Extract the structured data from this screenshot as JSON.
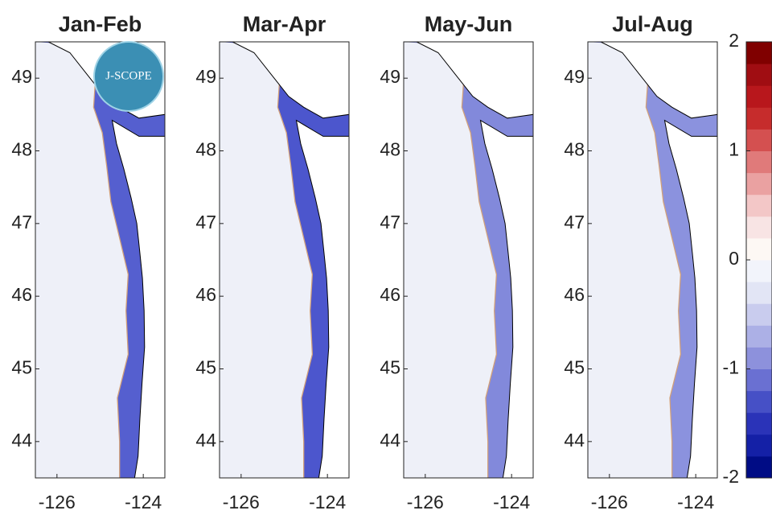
{
  "logo_text": "J-SCOPE",
  "map": {
    "xlim": [
      -126.5,
      -123.5
    ],
    "ylim": [
      43.5,
      49.5
    ],
    "xticks": [
      -126,
      -124
    ],
    "yticks": [
      44,
      45,
      46,
      47,
      48,
      49
    ],
    "panels": [
      {
        "title": "Jan-Feb"
      },
      {
        "title": "Mar-Apr"
      },
      {
        "title": "May-Jun"
      },
      {
        "title": "Jul-Aug"
      }
    ]
  },
  "colorbar": {
    "clim": [
      -2,
      2
    ],
    "ticks": [
      -2,
      -1,
      0,
      1,
      2
    ],
    "colors": [
      "#000c85",
      "#1420a6",
      "#2a33b8",
      "#4650c6",
      "#6a70d2",
      "#8d91dc",
      "#acb0e6",
      "#c9ccee",
      "#e2e5f5",
      "#f2f4fb",
      "#fdf8f4",
      "#f8e4e4",
      "#f3c7c7",
      "#eaa1a1",
      "#e07a7a",
      "#d45050",
      "#c62c2c",
      "#b8171c",
      "#a00d12",
      "#800000"
    ]
  }
}
